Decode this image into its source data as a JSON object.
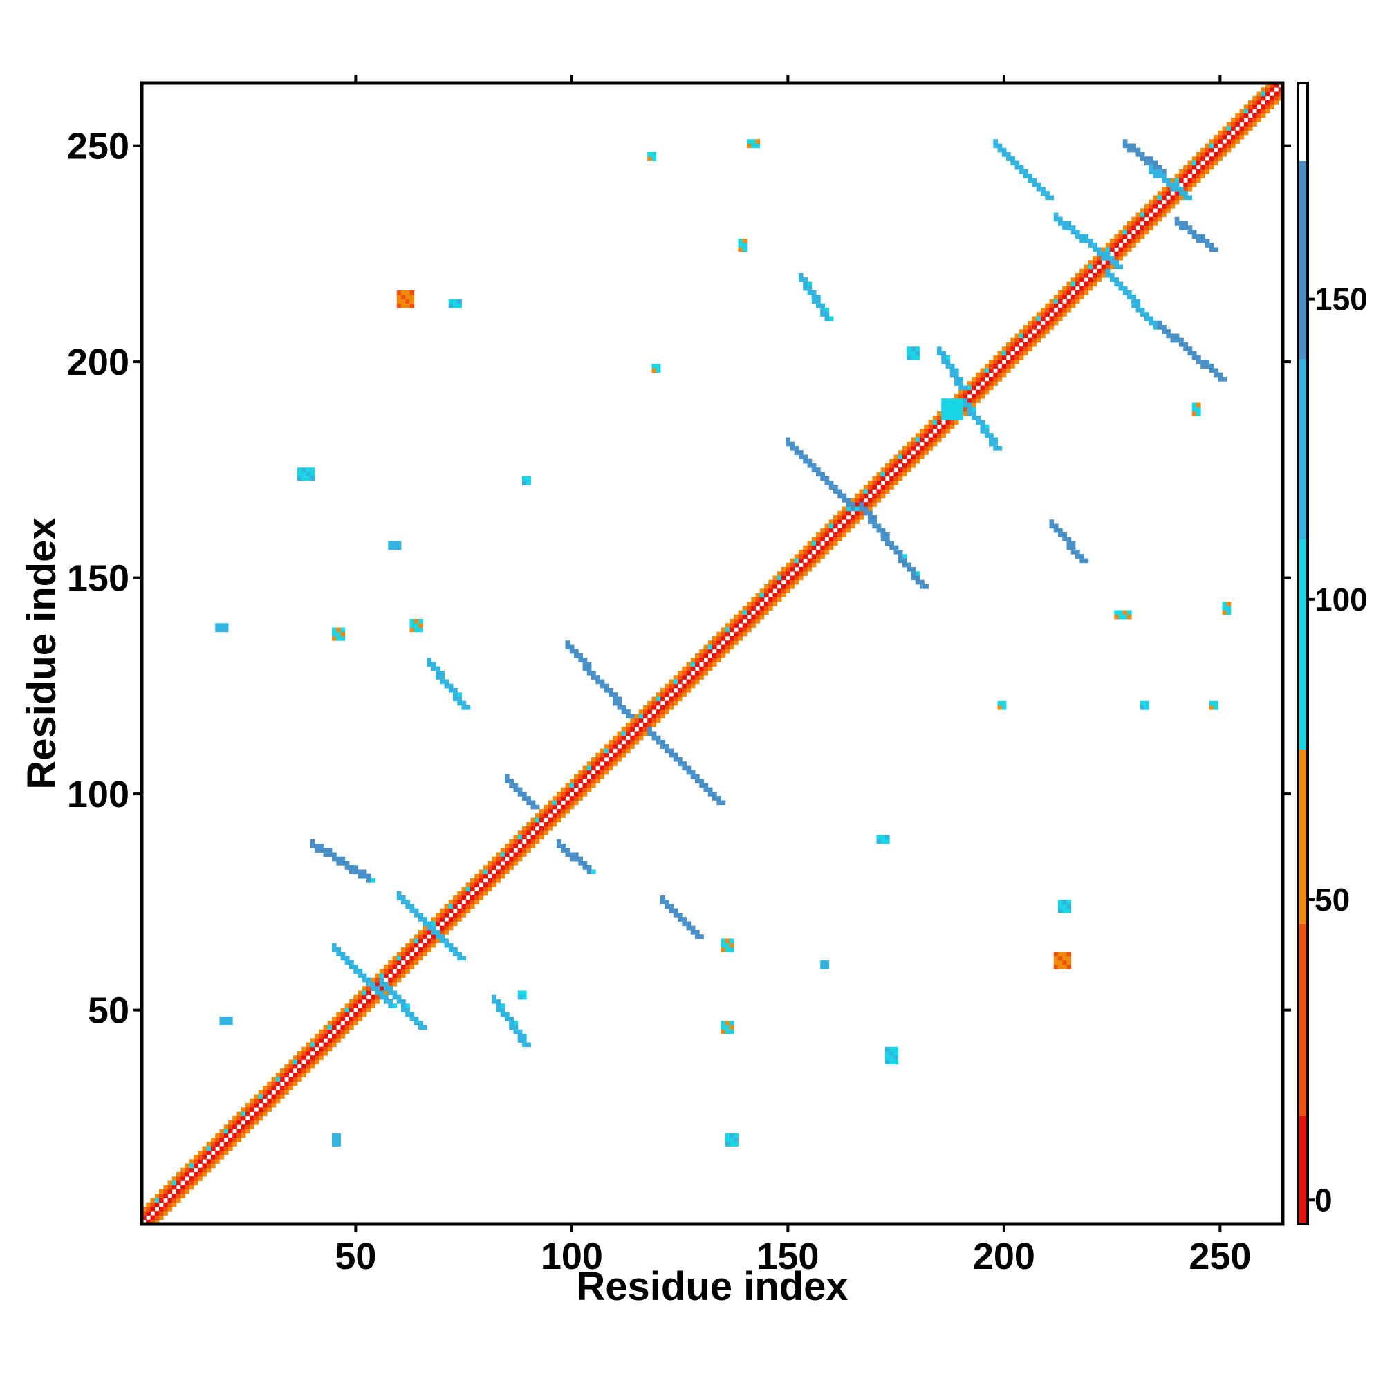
{
  "chart_data": {
    "type": "heatmap",
    "title": "",
    "xlabel": "Residue index",
    "ylabel": "Residue index",
    "xlim": [
      1,
      264
    ],
    "ylim": [
      1,
      264
    ],
    "x_ticks": [
      "50",
      "100",
      "150",
      "200",
      "250"
    ],
    "y_ticks": [
      "50",
      "100",
      "150",
      "200",
      "250"
    ],
    "x_tick_values": [
      50,
      100,
      150,
      200,
      250
    ],
    "y_tick_values": [
      50,
      100,
      150,
      200,
      250
    ],
    "colorbar": {
      "range": [
        -4,
        186
      ],
      "ticks": [
        "0",
        "50",
        "100",
        "150"
      ],
      "tick_values": [
        0,
        50,
        100,
        150
      ],
      "bands": [
        {
          "from": -4,
          "to": 14,
          "color": "#e8120a"
        },
        {
          "from": 14,
          "to": 46,
          "color": "#f0520e"
        },
        {
          "from": 46,
          "to": 75,
          "color": "#f08a0a"
        },
        {
          "from": 75,
          "to": 110,
          "color": "#18d6e6"
        },
        {
          "from": 110,
          "to": 140,
          "color": "#33b4e0"
        },
        {
          "from": 140,
          "to": 173,
          "color": "#4a90c8"
        },
        {
          "from": 173,
          "to": 186,
          "color": "#ffffff"
        }
      ]
    },
    "diagonal": {
      "from": 1,
      "to": 264,
      "value": 35
    },
    "contact_segments": [
      {
        "x1": 45,
        "y1": 64,
        "x2": 58,
        "y2": 51,
        "value": 130
      },
      {
        "x1": 56,
        "y1": 56,
        "x2": 65,
        "y2": 46,
        "value": 120
      },
      {
        "x1": 40,
        "y1": 88,
        "x2": 53,
        "y2": 80,
        "value": 150
      },
      {
        "x1": 60,
        "y1": 76,
        "x2": 74,
        "y2": 62,
        "value": 130
      },
      {
        "x1": 82,
        "y1": 52,
        "x2": 89,
        "y2": 42,
        "value": 125
      },
      {
        "x1": 85,
        "y1": 103,
        "x2": 91,
        "y2": 97,
        "value": 150
      },
      {
        "x1": 97,
        "y1": 88,
        "x2": 104,
        "y2": 82,
        "value": 145
      },
      {
        "x1": 121,
        "y1": 75,
        "x2": 129,
        "y2": 67,
        "value": 140
      },
      {
        "x1": 99,
        "y1": 134,
        "x2": 113,
        "y2": 118,
        "value": 150
      },
      {
        "x1": 118,
        "y1": 114,
        "x2": 134,
        "y2": 98,
        "value": 150
      },
      {
        "x1": 67,
        "y1": 130,
        "x2": 75,
        "y2": 120,
        "value": 135
      },
      {
        "x1": 150,
        "y1": 181,
        "x2": 165,
        "y2": 166,
        "value": 140
      },
      {
        "x1": 167,
        "y1": 166,
        "x2": 181,
        "y2": 148,
        "value": 140
      },
      {
        "x1": 185,
        "y1": 202,
        "x2": 190,
        "y2": 194,
        "value": 130
      },
      {
        "x1": 191,
        "y1": 190,
        "x2": 198,
        "y2": 180,
        "value": 120
      },
      {
        "x1": 153,
        "y1": 219,
        "x2": 159,
        "y2": 210,
        "value": 135
      },
      {
        "x1": 211,
        "y1": 162,
        "x2": 218,
        "y2": 154,
        "value": 140
      },
      {
        "x1": 198,
        "y1": 250,
        "x2": 210,
        "y2": 238,
        "value": 135
      },
      {
        "x1": 212,
        "y1": 233,
        "x2": 226,
        "y2": 222,
        "value": 135
      },
      {
        "x1": 224,
        "y1": 220,
        "x2": 235,
        "y2": 208,
        "value": 130
      },
      {
        "x1": 236,
        "y1": 208,
        "x2": 250,
        "y2": 196,
        "value": 145
      },
      {
        "x1": 228,
        "y1": 250,
        "x2": 236,
        "y2": 244,
        "value": 150
      },
      {
        "x1": 240,
        "y1": 232,
        "x2": 248,
        "y2": 226,
        "value": 140
      },
      {
        "x1": 234,
        "y1": 244,
        "x2": 242,
        "y2": 238,
        "value": 120
      }
    ],
    "contact_blobs": [
      {
        "x": 60,
        "y": 213,
        "w": 4,
        "h": 4,
        "value": 30
      },
      {
        "x": 72,
        "y": 213,
        "w": 3,
        "h": 2,
        "value": 120
      },
      {
        "x": 37,
        "y": 173,
        "w": 4,
        "h": 3,
        "value": 125
      },
      {
        "x": 89,
        "y": 172,
        "w": 2,
        "h": 2,
        "value": 125
      },
      {
        "x": 58,
        "y": 157,
        "w": 3,
        "h": 2,
        "value": 135
      },
      {
        "x": 45,
        "y": 136,
        "w": 3,
        "h": 3,
        "value": 60
      },
      {
        "x": 63,
        "y": 138,
        "w": 3,
        "h": 3,
        "value": 60
      },
      {
        "x": 18,
        "y": 138,
        "w": 3,
        "h": 2,
        "value": 135
      },
      {
        "x": 118,
        "y": 247,
        "w": 2,
        "h": 2,
        "value": 60
      },
      {
        "x": 141,
        "y": 250,
        "w": 3,
        "h": 2,
        "value": 60
      },
      {
        "x": 139,
        "y": 226,
        "w": 2,
        "h": 3,
        "value": 60
      },
      {
        "x": 119,
        "y": 198,
        "w": 2,
        "h": 2,
        "value": 60
      },
      {
        "x": 186,
        "y": 187,
        "w": 5,
        "h": 5,
        "value": 100
      },
      {
        "x": 178,
        "y": 201,
        "w": 3,
        "h": 3,
        "value": 120
      },
      {
        "x": 171,
        "y": 89,
        "w": 3,
        "h": 2,
        "value": 125
      },
      {
        "x": 213,
        "y": 73,
        "w": 3,
        "h": 3,
        "value": 120
      },
      {
        "x": 212,
        "y": 60,
        "w": 4,
        "h": 4,
        "value": 30
      },
      {
        "x": 173,
        "y": 38,
        "w": 3,
        "h": 4,
        "value": 125
      },
      {
        "x": 135,
        "y": 45,
        "w": 3,
        "h": 3,
        "value": 60
      },
      {
        "x": 136,
        "y": 19,
        "w": 3,
        "h": 3,
        "value": 120
      },
      {
        "x": 135,
        "y": 64,
        "w": 3,
        "h": 3,
        "value": 60
      },
      {
        "x": 158,
        "y": 60,
        "w": 2,
        "h": 2,
        "value": 135
      },
      {
        "x": 45,
        "y": 19,
        "w": 2,
        "h": 3,
        "value": 135
      },
      {
        "x": 19,
        "y": 47,
        "w": 3,
        "h": 2,
        "value": 135
      },
      {
        "x": 226,
        "y": 141,
        "w": 4,
        "h": 2,
        "value": 60
      },
      {
        "x": 251,
        "y": 142,
        "w": 2,
        "h": 3,
        "value": 60
      },
      {
        "x": 244,
        "y": 188,
        "w": 2,
        "h": 3,
        "value": 60
      },
      {
        "x": 248,
        "y": 120,
        "w": 2,
        "h": 2,
        "value": 60
      },
      {
        "x": 199,
        "y": 120,
        "w": 2,
        "h": 2,
        "value": 60
      },
      {
        "x": 232,
        "y": 120,
        "w": 2,
        "h": 2,
        "value": 120
      },
      {
        "x": 88,
        "y": 53,
        "w": 2,
        "h": 2,
        "value": 110
      }
    ]
  }
}
